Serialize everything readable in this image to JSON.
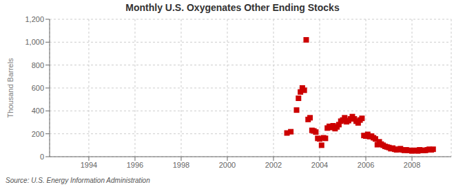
{
  "chart_data": {
    "type": "scatter",
    "title": "Monthly U.S. Oxygenates Other Ending Stocks",
    "ylabel": "Thousand Barrels",
    "annotations": [
      "Source: U.S. Energy Information Administration"
    ],
    "color": "#cc0000",
    "marker": "square",
    "grid": true,
    "xlim": [
      1992.3,
      2009.7
    ],
    "xticks": [
      1994,
      1996,
      1998,
      2000,
      2002,
      2004,
      2006,
      2008
    ],
    "ylim": [
      0,
      1200
    ],
    "yticks": [
      0,
      200,
      400,
      600,
      800,
      {
        "value": 1000,
        "label": "1,000"
      },
      {
        "value": 1200,
        "label": "1,200"
      }
    ],
    "x": [
      2002.583,
      2002.75,
      2003.0,
      2003.083,
      2003.167,
      2003.25,
      2003.333,
      2003.417,
      2003.5,
      2003.583,
      2003.667,
      2003.75,
      2003.833,
      2003.917,
      2004.0,
      2004.083,
      2004.167,
      2004.25,
      2004.333,
      2004.417,
      2004.5,
      2004.583,
      2004.667,
      2004.75,
      2004.833,
      2004.917,
      2005.0,
      2005.083,
      2005.167,
      2005.25,
      2005.333,
      2005.417,
      2005.5,
      2005.583,
      2005.667,
      2005.75,
      2005.833,
      2005.917,
      2006.0,
      2006.083,
      2006.167,
      2006.25,
      2006.333,
      2006.417,
      2006.5,
      2006.583,
      2006.667,
      2006.75,
      2006.833,
      2006.917,
      2007.0,
      2007.083,
      2007.167,
      2007.25,
      2007.333,
      2007.417,
      2007.5,
      2007.583,
      2007.667,
      2007.75,
      2007.833,
      2007.917,
      2008.0,
      2008.083,
      2008.167,
      2008.25,
      2008.333,
      2008.417,
      2008.5,
      2008.583,
      2008.667,
      2008.75,
      2008.833,
      2008.917
    ],
    "values": [
      207,
      218,
      407,
      510,
      565,
      600,
      580,
      1020,
      325,
      340,
      230,
      225,
      215,
      160,
      155,
      100,
      165,
      160,
      250,
      265,
      255,
      270,
      245,
      260,
      280,
      310,
      320,
      340,
      305,
      315,
      330,
      350,
      330,
      310,
      295,
      320,
      335,
      185,
      180,
      195,
      175,
      180,
      165,
      155,
      105,
      130,
      110,
      100,
      90,
      85,
      80,
      70,
      75,
      65,
      60,
      65,
      70,
      60,
      55,
      60,
      55,
      55,
      50,
      55,
      55,
      50,
      60,
      55,
      55,
      55,
      60,
      65,
      60,
      65
    ]
  }
}
